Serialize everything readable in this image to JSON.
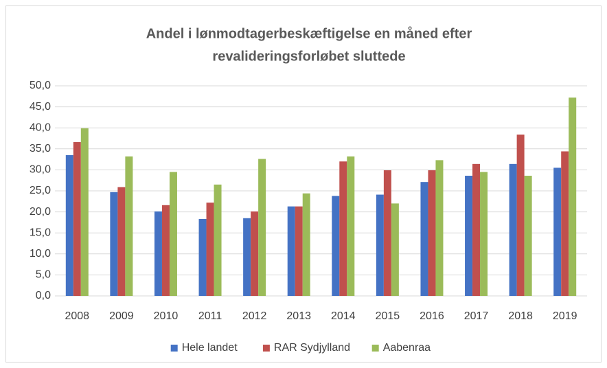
{
  "chart_data": {
    "type": "bar",
    "title": [
      "Andel i lønmodtagerbeskæftigelse en måned efter",
      "revalideringsforløbet sluttede"
    ],
    "categories": [
      "2008",
      "2009",
      "2010",
      "2011",
      "2012",
      "2013",
      "2014",
      "2015",
      "2016",
      "2017",
      "2018",
      "2019"
    ],
    "series": [
      {
        "name": "Hele landet",
        "color": "#4472c4",
        "values": [
          33.5,
          24.7,
          20.1,
          18.3,
          18.5,
          21.3,
          23.8,
          24.1,
          27.1,
          28.6,
          31.4,
          30.5
        ]
      },
      {
        "name": "RAR Sydjylland",
        "color": "#c0504d",
        "values": [
          36.6,
          25.9,
          21.6,
          22.2,
          20.1,
          21.3,
          32.0,
          29.9,
          29.9,
          31.4,
          38.4,
          34.4
        ]
      },
      {
        "name": "Aabenraa",
        "color": "#9bbb59",
        "values": [
          39.9,
          33.2,
          29.5,
          26.5,
          32.6,
          24.4,
          33.2,
          22.0,
          32.3,
          29.5,
          28.6,
          47.2
        ]
      }
    ],
    "ylim": [
      0,
      50
    ],
    "yticks": [
      {
        "value": 0,
        "label": "0,0"
      },
      {
        "value": 5,
        "label": "5,0"
      },
      {
        "value": 10,
        "label": "10,0"
      },
      {
        "value": 15,
        "label": "15,0"
      },
      {
        "value": 20,
        "label": "20,0"
      },
      {
        "value": 25,
        "label": "25,0"
      },
      {
        "value": 30,
        "label": "30,0"
      },
      {
        "value": 35,
        "label": "35,0"
      },
      {
        "value": 40,
        "label": "40,0"
      },
      {
        "value": 45,
        "label": "45,0"
      },
      {
        "value": 50,
        "label": "50,0"
      }
    ],
    "grid": true,
    "legend": "bottom"
  }
}
